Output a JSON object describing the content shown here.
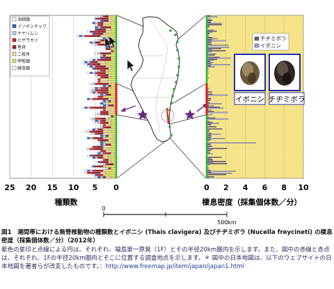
{
  "chart_data": [
    {
      "type": "bar",
      "orientation": "horizontal",
      "stacked": true,
      "xlabel": "種類数",
      "xticks": [
        25,
        20,
        15,
        10,
        5,
        0
      ],
      "xlim": [
        0,
        25
      ],
      "x_reversed": true,
      "legend_placement": "top-left",
      "series": [
        {
          "name": "海綿類",
          "color": "#ffffff"
        },
        {
          "name": "イソギンチャク",
          "color": "#2a5fd0"
        },
        {
          "name": "ケヤリムシ",
          "color": "#b8d1f2"
        },
        {
          "name": "ヒザラガイ",
          "color": "#d92020"
        },
        {
          "name": "巻貝",
          "color": "#9c1c2a"
        },
        {
          "name": "二枚貝",
          "color": "#f6df9c"
        },
        {
          "name": "甲殻類",
          "color": "#e8e85a"
        },
        {
          "name": "線虫類",
          "color": "#ffffff"
        }
      ],
      "stations_approx": 75
    },
    {
      "type": "bar",
      "orientation": "horizontal",
      "grouped": true,
      "xlabel": "棲息密度（採集個体数／分）",
      "xticks": [
        0,
        2,
        4,
        6,
        8,
        10
      ],
      "xlim": [
        0,
        10
      ],
      "legend_placement": "top-left",
      "series": [
        {
          "name": "チヂミボラ",
          "color": "#6a5a8a"
        },
        {
          "name": "イボニシ",
          "color": "#9aa2e6"
        }
      ],
      "stations_approx": 75
    }
  ],
  "photos": {
    "left_label": "イボニシ",
    "right_label": "チヂミボラ"
  },
  "map": {
    "scale_start": "0",
    "scale_end": "500km"
  },
  "caption": {
    "title": "図1　潮間帯における無脊椎動物の種類数とイボニシ (Thais clavigera) 及びチヂミボラ (Nucella freycineti) の棲息密度（採集個体数／分）（2012年）",
    "body": "紫色の星印と点線による円は、それぞれ、福島第一原発（1F）とその半径20km圏内を示します。また、図中の赤線と赤点は、それぞれ、1Fの半径20km圏内とそこに位置する調査地点を示します。＊ 図中の日本地図は、以下のウェブサイトの日本地図を著者らが改変したものです。：",
    "url": "http://www.freemap.jp/item/japan/japan1.html"
  },
  "colors": {
    "green_line": "#2fb52f",
    "red_zone": "#e01c1c",
    "star": "#6a2a88",
    "grid_bg_right": "#f7e58a",
    "photo_border": "#1c2fb0"
  }
}
